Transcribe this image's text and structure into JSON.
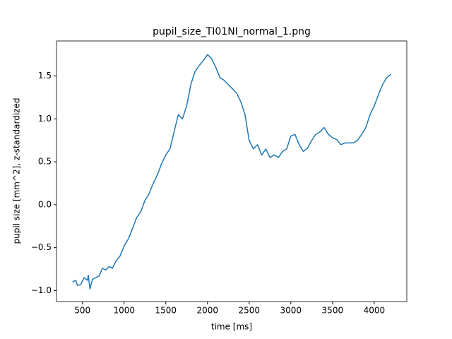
{
  "chart_data": {
    "type": "line",
    "title": "pupil_size_TI01NI_normal_1.png",
    "x_label": "time [ms]",
    "y_label": "pupil size [mm^2], z-standardized",
    "x": [
      380,
      420,
      440,
      480,
      520,
      560,
      570,
      590,
      620,
      660,
      700,
      740,
      780,
      820,
      860,
      900,
      950,
      1000,
      1050,
      1100,
      1150,
      1200,
      1250,
      1300,
      1350,
      1400,
      1450,
      1500,
      1550,
      1600,
      1650,
      1700,
      1750,
      1800,
      1850,
      1900,
      1950,
      2000,
      2050,
      2100,
      2150,
      2200,
      2250,
      2300,
      2350,
      2400,
      2450,
      2500,
      2550,
      2600,
      2650,
      2700,
      2750,
      2800,
      2850,
      2900,
      2950,
      3000,
      3050,
      3100,
      3150,
      3200,
      3250,
      3300,
      3350,
      3400,
      3450,
      3500,
      3550,
      3600,
      3650,
      3700,
      3750,
      3800,
      3850,
      3900,
      3950,
      4000,
      4050,
      4100,
      4150,
      4200
    ],
    "series": [
      {
        "name": "pupil size",
        "color": "#1f77b4",
        "values": [
          -0.9,
          -0.88,
          -0.94,
          -0.93,
          -0.85,
          -0.88,
          -0.82,
          -0.98,
          -0.87,
          -0.85,
          -0.83,
          -0.74,
          -0.76,
          -0.72,
          -0.74,
          -0.66,
          -0.6,
          -0.48,
          -0.4,
          -0.28,
          -0.15,
          -0.08,
          0.05,
          0.13,
          0.25,
          0.35,
          0.48,
          0.58,
          0.65,
          0.85,
          1.05,
          1.0,
          1.15,
          1.4,
          1.55,
          1.62,
          1.68,
          1.75,
          1.7,
          1.6,
          1.48,
          1.45,
          1.4,
          1.35,
          1.3,
          1.2,
          1.05,
          0.75,
          0.65,
          0.7,
          0.58,
          0.65,
          0.55,
          0.58,
          0.55,
          0.62,
          0.65,
          0.8,
          0.82,
          0.7,
          0.62,
          0.66,
          0.75,
          0.82,
          0.85,
          0.9,
          0.82,
          0.78,
          0.76,
          0.7,
          0.72,
          0.72,
          0.72,
          0.75,
          0.82,
          0.9,
          1.05,
          1.15,
          1.28,
          1.4,
          1.48,
          1.52
        ]
      }
    ],
    "xlim": [
      189,
      4391
    ],
    "ylim": [
      -1.128,
      1.908
    ],
    "xticks": [
      500,
      1000,
      1500,
      2000,
      2500,
      3000,
      3500,
      4000
    ],
    "yticks": [
      {
        "value": -1.0,
        "label": "−1.0"
      },
      {
        "value": -0.5,
        "label": "−0.5"
      },
      {
        "value": 0.0,
        "label": "0.0"
      },
      0.5,
      {
        "value": 1.0,
        "label": "1.0"
      },
      1.5
    ],
    "grid": false
  }
}
